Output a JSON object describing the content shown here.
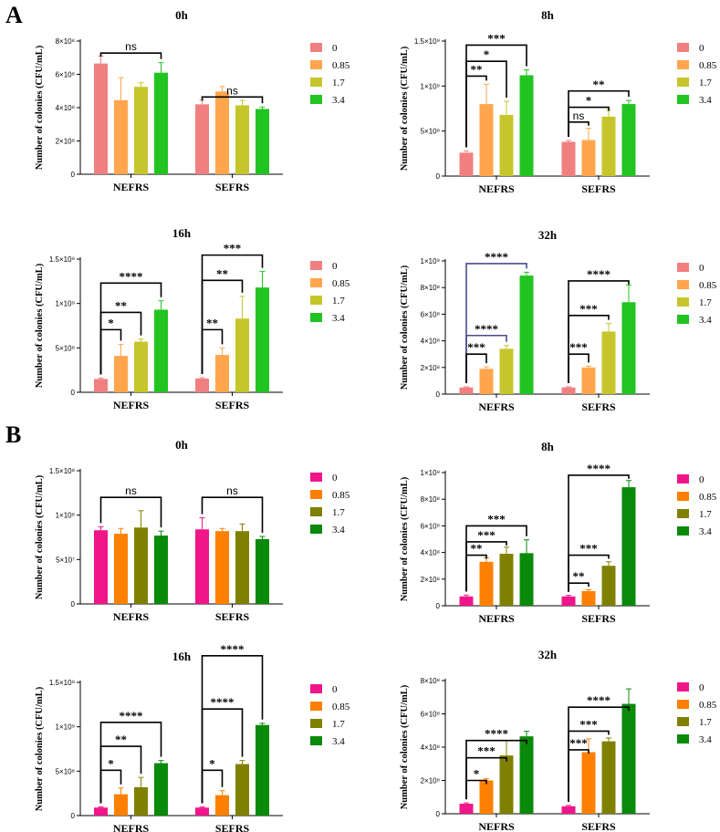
{
  "panels": {
    "A": "A",
    "B": "B"
  },
  "chart_data": [
    {
      "id": "A-0h",
      "panel": "A",
      "type": "bar",
      "title": "0h",
      "ylabel": "Number of colonies (CFU/mL)",
      "categories": [
        "NEFRS",
        "SEFRS"
      ],
      "legend": [
        "0",
        "0.85",
        "1.7",
        "3.4"
      ],
      "colors": [
        "#f08080",
        "#ffa64d",
        "#c6c62c",
        "#22c422"
      ],
      "ylim": [
        0,
        800000000
      ],
      "yticks": [
        0,
        200000000,
        400000000,
        600000000,
        800000000
      ],
      "ytick_labels": [
        "0",
        "2×10⁸",
        "4×10⁸",
        "6×10⁸",
        "8×10⁸"
      ],
      "values": [
        [
          665000000,
          445000000,
          525000000,
          610000000
        ],
        [
          420000000,
          497000000,
          414000000,
          392000000
        ]
      ],
      "errors": [
        [
          45000000,
          135000000,
          25000000,
          60000000
        ],
        [
          25000000,
          30000000,
          30000000,
          12000000
        ]
      ],
      "brackets": [
        {
          "group": 0,
          "from": 0,
          "to": 3,
          "level": 0.91,
          "label": "ns"
        },
        {
          "group": 1,
          "from": 0,
          "to": 3,
          "level": 0.58,
          "label": "ns"
        }
      ]
    },
    {
      "id": "A-8h",
      "panel": "A",
      "type": "bar",
      "title": "8h",
      "ylabel": "Number of colonies (CFU/mL)",
      "categories": [
        "NEFRS",
        "SEFRS"
      ],
      "legend": [
        "0",
        "0.85",
        "1.7",
        "3.4"
      ],
      "colors": [
        "#f08080",
        "#ffa64d",
        "#c6c62c",
        "#22c422"
      ],
      "ylim": [
        0,
        1500000000
      ],
      "yticks": [
        0,
        500000000,
        1000000000,
        1500000000
      ],
      "ytick_labels": [
        "0",
        "5×10⁸",
        "1×10⁹",
        "1.5×10⁹"
      ],
      "values": [
        [
          260000000,
          800000000,
          680000000,
          1120000000
        ],
        [
          380000000,
          400000000,
          660000000,
          800000000
        ]
      ],
      "errors": [
        [
          20000000,
          220000000,
          150000000,
          60000000
        ],
        [
          15000000,
          130000000,
          70000000,
          40000000
        ]
      ],
      "brackets": [
        {
          "group": 0,
          "from": 0,
          "to": 3,
          "level": 0.97,
          "label": "***"
        },
        {
          "group": 0,
          "from": 0,
          "to": 2,
          "level": 0.85,
          "label": "*"
        },
        {
          "group": 0,
          "from": 0,
          "to": 1,
          "level": 0.74,
          "label": "**"
        },
        {
          "group": 1,
          "from": 0,
          "to": 3,
          "level": 0.63,
          "label": "**"
        },
        {
          "group": 1,
          "from": 0,
          "to": 2,
          "level": 0.51,
          "label": "*"
        },
        {
          "group": 1,
          "from": 0,
          "to": 1,
          "level": 0.4,
          "label": "ns"
        }
      ]
    },
    {
      "id": "A-16h",
      "panel": "A",
      "type": "bar",
      "title": "16h",
      "ylabel": "Number of colonies (CFU/mL)",
      "categories": [
        "NEFRS",
        "SEFRS"
      ],
      "legend": [
        "0",
        "0.85",
        "1.7",
        "3.4"
      ],
      "colors": [
        "#f08080",
        "#ffa64d",
        "#c6c62c",
        "#22c422"
      ],
      "ylim": [
        0,
        1500000000
      ],
      "yticks": [
        0,
        500000000,
        1000000000,
        1500000000
      ],
      "ytick_labels": [
        "0",
        "5×10⁸",
        "1×10⁹",
        "1.5×10⁹"
      ],
      "values": [
        [
          150000000,
          410000000,
          570000000,
          930000000
        ],
        [
          155000000,
          420000000,
          830000000,
          1180000000
        ]
      ],
      "errors": [
        [
          10000000,
          130000000,
          30000000,
          100000000
        ],
        [
          10000000,
          80000000,
          250000000,
          180000000
        ]
      ],
      "brackets": [
        {
          "group": 0,
          "from": 0,
          "to": 3,
          "level": 0.82,
          "label": "****"
        },
        {
          "group": 0,
          "from": 0,
          "to": 2,
          "level": 0.6,
          "label": "**"
        },
        {
          "group": 0,
          "from": 0,
          "to": 1,
          "level": 0.47,
          "label": "*"
        },
        {
          "group": 1,
          "from": 0,
          "to": 3,
          "level": 1.03,
          "label": "***"
        },
        {
          "group": 1,
          "from": 0,
          "to": 2,
          "level": 0.84,
          "label": "**"
        },
        {
          "group": 1,
          "from": 0,
          "to": 1,
          "level": 0.47,
          "label": "**"
        }
      ]
    },
    {
      "id": "A-32h",
      "panel": "A",
      "type": "bar",
      "title": "32h",
      "ylabel": "Number of colonies (CFU/mL)",
      "categories": [
        "NEFRS",
        "SEFRS"
      ],
      "legend": [
        "0",
        "0.85",
        "1.7",
        "3.4"
      ],
      "colors": [
        "#f08080",
        "#ffa64d",
        "#c6c62c",
        "#22c422"
      ],
      "ylim": [
        0,
        1000000000
      ],
      "yticks": [
        0,
        200000000,
        400000000,
        600000000,
        800000000,
        1000000000
      ],
      "ytick_labels": [
        "0",
        "2×10⁸",
        "4×10⁸",
        "6×10⁸",
        "8×10⁸",
        "1×10⁹"
      ],
      "values": [
        [
          50000000,
          190000000,
          340000000,
          890000000
        ],
        [
          50000000,
          200000000,
          470000000,
          690000000
        ]
      ],
      "errors": [
        [
          5000000,
          15000000,
          25000000,
          25000000
        ],
        [
          5000000,
          10000000,
          60000000,
          130000000
        ]
      ],
      "brackets": [
        {
          "group": 0,
          "from": 0,
          "to": 3,
          "level": 0.98,
          "label": "****",
          "color": "#4b4b8c"
        },
        {
          "group": 0,
          "from": 0,
          "to": 2,
          "level": 0.44,
          "label": "****",
          "color": "#4b4b8c"
        },
        {
          "group": 0,
          "from": 0,
          "to": 1,
          "level": 0.3,
          "label": "***"
        },
        {
          "group": 1,
          "from": 0,
          "to": 3,
          "level": 0.85,
          "label": "****"
        },
        {
          "group": 1,
          "from": 0,
          "to": 2,
          "level": 0.59,
          "label": "***"
        },
        {
          "group": 1,
          "from": 0,
          "to": 1,
          "level": 0.3,
          "label": "***"
        }
      ]
    },
    {
      "id": "B-0h",
      "panel": "B",
      "type": "bar",
      "title": "0h",
      "ylabel": "Number of colonies (CFU/mL)",
      "categories": [
        "NEFRS",
        "SEFRS"
      ],
      "legend": [
        "0",
        "0.85",
        "1.7",
        "3.4"
      ],
      "colors": [
        "#f0168a",
        "#ff8000",
        "#808000",
        "#0a8a0a"
      ],
      "ylim": [
        0,
        150000000
      ],
      "yticks": [
        0,
        50000000,
        100000000,
        150000000
      ],
      "ytick_labels": [
        "0",
        "5×10⁷",
        "1×10⁸",
        "1.5×10⁸"
      ],
      "values": [
        [
          83000000,
          79000000,
          86000000,
          77000000
        ],
        [
          84000000,
          82000000,
          82000000,
          73000000
        ]
      ],
      "errors": [
        [
          4000000,
          6000000,
          19000000,
          5000000
        ],
        [
          13000000,
          3000000,
          8000000,
          3000000
        ]
      ],
      "brackets": [
        {
          "group": 0,
          "from": 0,
          "to": 3,
          "level": 0.8,
          "label": "ns"
        },
        {
          "group": 1,
          "from": 0,
          "to": 3,
          "level": 0.8,
          "label": "ns"
        }
      ]
    },
    {
      "id": "B-8h",
      "panel": "B",
      "type": "bar",
      "title": "8h",
      "ylabel": "Number of colonies (CFU/mL)",
      "categories": [
        "NEFRS",
        "SEFRS"
      ],
      "legend": [
        "0",
        "0.85",
        "1.7",
        "3.4"
      ],
      "colors": [
        "#f0168a",
        "#ff8000",
        "#808000",
        "#0a8a0a"
      ],
      "ylim": [
        0,
        1000000000
      ],
      "yticks": [
        0,
        200000000,
        400000000,
        600000000,
        800000000,
        1000000000
      ],
      "ytick_labels": [
        "0",
        "2×10⁸",
        "4×10⁸",
        "6×10⁸",
        "8×10⁸",
        "1×10⁹"
      ],
      "values": [
        [
          70000000,
          330000000,
          390000000,
          395000000
        ],
        [
          70000000,
          110000000,
          300000000,
          890000000
        ]
      ],
      "errors": [
        [
          10000000,
          30000000,
          50000000,
          100000000
        ],
        [
          8000000,
          10000000,
          30000000,
          50000000
        ]
      ],
      "brackets": [
        {
          "group": 0,
          "from": 0,
          "to": 3,
          "level": 0.6,
          "label": "***"
        },
        {
          "group": 0,
          "from": 0,
          "to": 2,
          "level": 0.48,
          "label": "***"
        },
        {
          "group": 0,
          "from": 0,
          "to": 1,
          "level": 0.38,
          "label": "**"
        },
        {
          "group": 1,
          "from": 0,
          "to": 3,
          "level": 0.98,
          "label": "****"
        },
        {
          "group": 1,
          "from": 0,
          "to": 2,
          "level": 0.38,
          "label": "***"
        },
        {
          "group": 1,
          "from": 0,
          "to": 1,
          "level": 0.17,
          "label": "**"
        }
      ]
    },
    {
      "id": "B-16h",
      "panel": "B",
      "type": "bar",
      "title": "16h",
      "ylabel": "Number of colonies (CFU/mL)",
      "categories": [
        "NEFRS",
        "SEFRS"
      ],
      "legend": [
        "0",
        "0.85",
        "1.7",
        "3.4"
      ],
      "colors": [
        "#f0168a",
        "#ff8000",
        "#808000",
        "#0a8a0a"
      ],
      "ylim": [
        0,
        1500000000
      ],
      "yticks": [
        0,
        500000000,
        1000000000,
        1500000000
      ],
      "ytick_labels": [
        "0",
        "5×10⁸",
        "1×10⁹",
        "1.5×10⁹"
      ],
      "values": [
        [
          90000000,
          240000000,
          320000000,
          590000000
        ],
        [
          90000000,
          230000000,
          580000000,
          1020000000
        ]
      ],
      "errors": [
        [
          8000000,
          70000000,
          110000000,
          30000000
        ],
        [
          8000000,
          50000000,
          40000000,
          20000000
        ]
      ],
      "brackets": [
        {
          "group": 0,
          "from": 0,
          "to": 3,
          "level": 0.7,
          "label": "****"
        },
        {
          "group": 0,
          "from": 0,
          "to": 2,
          "level": 0.52,
          "label": "**"
        },
        {
          "group": 0,
          "from": 0,
          "to": 1,
          "level": 0.34,
          "label": "*"
        },
        {
          "group": 1,
          "from": 0,
          "to": 3,
          "level": 1.2,
          "label": "****"
        },
        {
          "group": 1,
          "from": 0,
          "to": 2,
          "level": 0.8,
          "label": "****"
        },
        {
          "group": 1,
          "from": 0,
          "to": 1,
          "level": 0.34,
          "label": "*"
        }
      ]
    },
    {
      "id": "B-32h",
      "panel": "B",
      "type": "bar",
      "title": "32h",
      "ylabel": "Number of colonies (CFU/mL)",
      "categories": [
        "NEFRS",
        "SEFRS"
      ],
      "legend": [
        "0",
        "0.85",
        "1.7",
        "3.4"
      ],
      "colors": [
        "#f0168a",
        "#ff8000",
        "#808000",
        "#0a8a0a"
      ],
      "ylim": [
        0,
        800000000
      ],
      "yticks": [
        0,
        200000000,
        400000000,
        600000000,
        800000000
      ],
      "ytick_labels": [
        "0",
        "2×10⁸",
        "4×10⁸",
        "6×10⁸",
        "8×10⁸"
      ],
      "values": [
        [
          60000000,
          200000000,
          350000000,
          465000000
        ],
        [
          45000000,
          370000000,
          435000000,
          660000000
        ]
      ],
      "errors": [
        [
          5000000,
          10000000,
          90000000,
          30000000
        ],
        [
          5000000,
          80000000,
          20000000,
          90000000
        ]
      ],
      "brackets": [
        {
          "group": 0,
          "from": 0,
          "to": 3,
          "level": 0.55,
          "label": "****"
        },
        {
          "group": 0,
          "from": 0,
          "to": 2,
          "level": 0.42,
          "label": "***"
        },
        {
          "group": 0,
          "from": 0,
          "to": 1,
          "level": 0.25,
          "label": "*"
        },
        {
          "group": 1,
          "from": 0,
          "to": 3,
          "level": 0.8,
          "label": "****"
        },
        {
          "group": 1,
          "from": 0,
          "to": 2,
          "level": 0.62,
          "label": "***"
        },
        {
          "group": 1,
          "from": 0,
          "to": 1,
          "level": 0.48,
          "label": "***"
        }
      ]
    }
  ]
}
